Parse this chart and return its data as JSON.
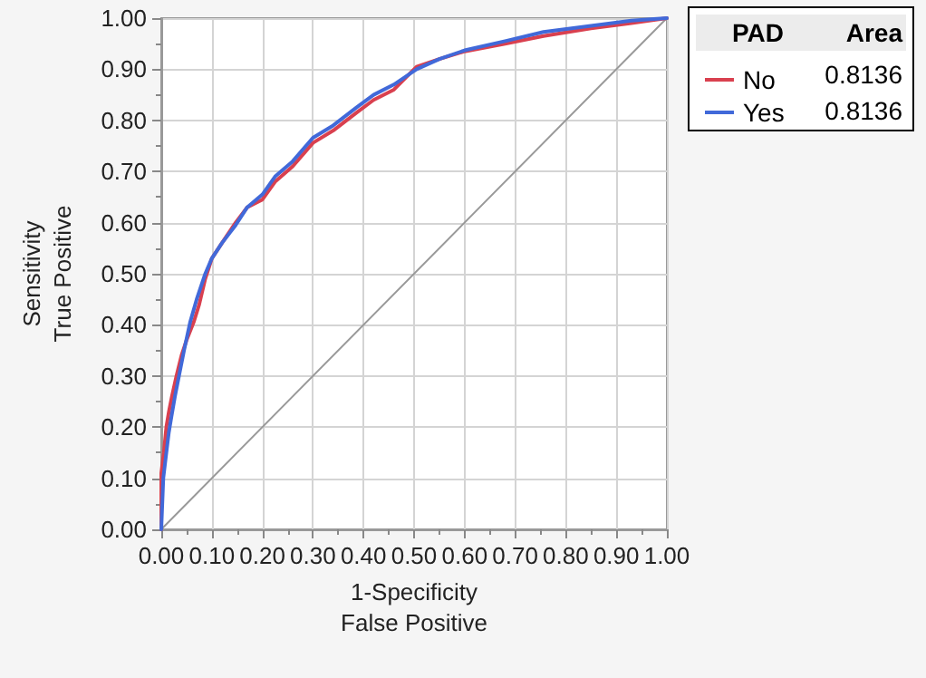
{
  "chart_data": {
    "type": "line",
    "xlabel": "1-Specificity\nFalse Positive",
    "ylabel": "Sensitivity\nTrue Positive",
    "legend_title": "PAD",
    "legend": "top right",
    "grid": true,
    "marker": "none",
    "line_style": "solid",
    "xlim": [
      0,
      1
    ],
    "ylim": [
      0,
      1
    ],
    "xticks": [
      {
        "value": 0,
        "label": "0.00"
      },
      {
        "value": 0.1,
        "label": "0.10"
      },
      {
        "value": 0.2,
        "label": "0.20"
      },
      {
        "value": 0.3,
        "label": "0.30"
      },
      {
        "value": 0.4,
        "label": "0.40"
      },
      {
        "value": 0.5,
        "label": "0.50"
      },
      {
        "value": 0.6,
        "label": "0.60"
      },
      {
        "value": 0.7,
        "label": "0.70"
      },
      {
        "value": 0.8,
        "label": "0.80"
      },
      {
        "value": 0.9,
        "label": "0.90"
      },
      {
        "value": 1,
        "label": "1.00"
      }
    ],
    "yticks": [
      {
        "value": 0,
        "label": "0.00"
      },
      {
        "value": 0.1,
        "label": "0.10"
      },
      {
        "value": 0.2,
        "label": "0.20"
      },
      {
        "value": 0.3,
        "label": "0.30"
      },
      {
        "value": 0.4,
        "label": "0.40"
      },
      {
        "value": 0.5,
        "label": "0.50"
      },
      {
        "value": 0.6,
        "label": "0.60"
      },
      {
        "value": 0.7,
        "label": "0.70"
      },
      {
        "value": 0.8,
        "label": "0.80"
      },
      {
        "value": 0.9,
        "label": "0.90"
      },
      {
        "value": 1,
        "label": "1.00"
      }
    ],
    "annotations": [
      "Area",
      "0.8136",
      "0.8136"
    ],
    "series": [
      {
        "name": "No",
        "color": "#d9404f",
        "x": [
          0,
          0,
          0.005,
          0.01,
          0.015,
          0.021,
          0.03,
          0.04,
          0.05,
          0.064,
          0.075,
          0.087,
          0.1,
          0.12,
          0.147,
          0.17,
          0.2,
          0.225,
          0.26,
          0.3,
          0.34,
          0.386,
          0.42,
          0.46,
          0.505,
          0.55,
          0.6,
          0.68,
          0.756,
          0.85,
          0.93,
          1
        ],
        "values": [
          0,
          0.11,
          0.15,
          0.2,
          0.23,
          0.26,
          0.3,
          0.34,
          0.37,
          0.405,
          0.44,
          0.49,
          0.53,
          0.56,
          0.6,
          0.63,
          0.645,
          0.68,
          0.71,
          0.756,
          0.78,
          0.815,
          0.84,
          0.86,
          0.905,
          0.92,
          0.935,
          0.95,
          0.965,
          0.98,
          0.99,
          1
        ]
      },
      {
        "name": "Yes",
        "color": "#4169d9",
        "x": [
          0,
          0.004,
          0.01,
          0.015,
          0.02,
          0.027,
          0.035,
          0.045,
          0.057,
          0.07,
          0.087,
          0.1,
          0.12,
          0.147,
          0.17,
          0.2,
          0.225,
          0.26,
          0.3,
          0.34,
          0.386,
          0.42,
          0.46,
          0.505,
          0.55,
          0.6,
          0.68,
          0.756,
          0.85,
          0.93,
          1
        ],
        "values": [
          0,
          0.1,
          0.15,
          0.19,
          0.22,
          0.26,
          0.3,
          0.35,
          0.405,
          0.45,
          0.5,
          0.53,
          0.56,
          0.595,
          0.63,
          0.655,
          0.69,
          0.72,
          0.766,
          0.79,
          0.825,
          0.85,
          0.87,
          0.9,
          0.92,
          0.937,
          0.955,
          0.973,
          0.985,
          0.995,
          1
        ]
      },
      {
        "type": "line",
        "color": "#999999",
        "x": [
          0,
          1
        ],
        "values": [
          0,
          1
        ]
      }
    ]
  }
}
